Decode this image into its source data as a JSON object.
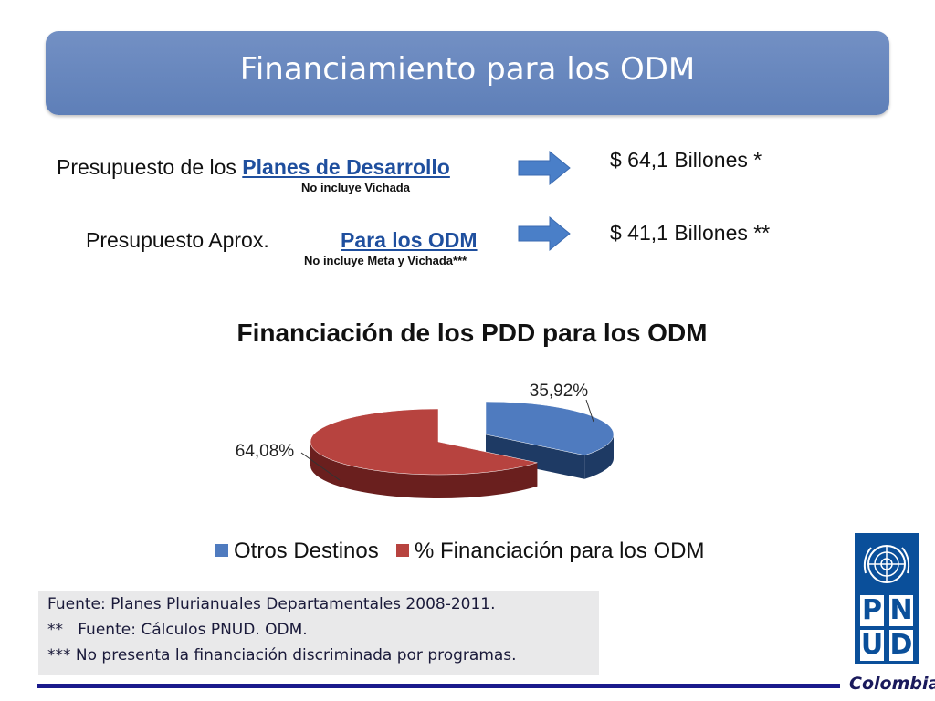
{
  "slide": {
    "title": "Financiamiento para los ODM"
  },
  "rows": [
    {
      "prefix": "Presupuesto de los ",
      "link": "Planes de Desarrollo",
      "note": "No incluye Vichada",
      "amount": "$ 64,1 Billones *"
    },
    {
      "prefix": "Presupuesto Aprox.",
      "link": "Para los ODM",
      "note": "No incluye Meta y Vichada***",
      "amount": "$ 41,1 Billones **"
    }
  ],
  "chart_data": {
    "type": "pie",
    "title": "Financiación de los PDD para los ODM",
    "slices": [
      {
        "name": "Otros Destinos",
        "value": 35.92,
        "label": "35,92%",
        "color": "#4f7bbf",
        "dark": "#1e3a64"
      },
      {
        "name": "% Financiación para los ODM",
        "value": 64.08,
        "label": "64,08%",
        "color": "#b7433f",
        "dark": "#6a1f1e"
      }
    ],
    "legend": [
      "Otros Destinos",
      "% Financiación para los ODM"
    ],
    "legend_position": "bottom",
    "three_d": true,
    "exploded": true
  },
  "footer": {
    "lines": [
      "Fuente: Planes Plurianuales Departamentales 2008-2011.",
      "**   Fuente: Cálculos PNUD. ODM.",
      "*** No presenta la financiación discriminada por programas."
    ]
  },
  "logo": {
    "letters": [
      "P",
      "N",
      "U",
      "D"
    ],
    "country": "Colombia"
  },
  "colors": {
    "title_bg": "#6986bf",
    "link": "#1f4f9e",
    "arrow": "#4a7fc8",
    "rule": "#1a1a8c"
  },
  "icons": [
    "right-arrow-icon",
    "un-emblem-icon"
  ]
}
